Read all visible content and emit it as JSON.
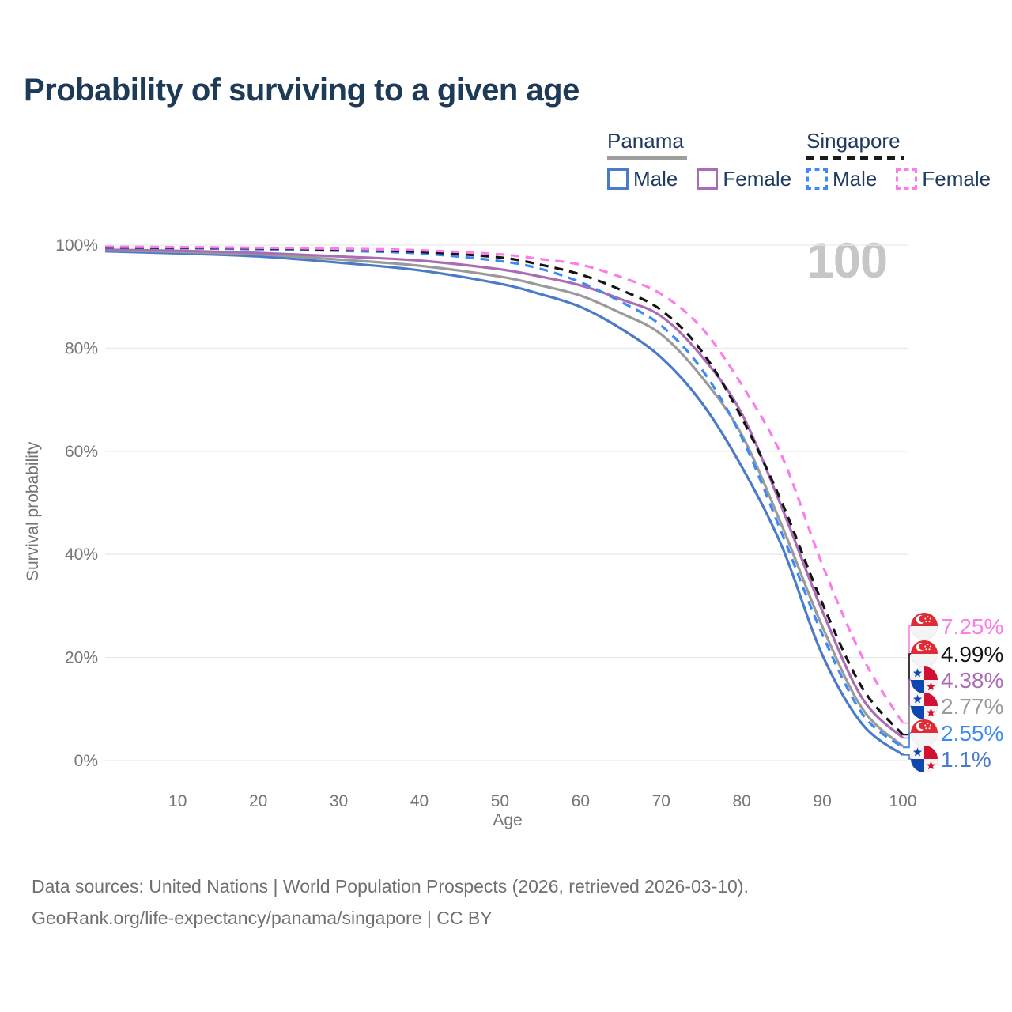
{
  "title": "Probability of surviving to a given age",
  "legend": {
    "groups": [
      {
        "label": "Panama",
        "underline_color": "#9e9e9e",
        "underline_dashed": false,
        "items": [
          {
            "label": "Male",
            "color": "#4b7bc8",
            "dashed": false
          },
          {
            "label": "Female",
            "color": "#aa6cb4",
            "dashed": false
          }
        ]
      },
      {
        "label": "Singapore",
        "underline_color": "#1a1a1a",
        "underline_dashed": true,
        "items": [
          {
            "label": "Male",
            "color": "#3d8af5",
            "dashed": true
          },
          {
            "label": "Female",
            "color": "#fb7de9",
            "dashed": true
          }
        ]
      }
    ]
  },
  "chart_data": {
    "type": "line",
    "title": "Probability of surviving to a given age",
    "xlabel": "Age",
    "ylabel": "Survival probability",
    "xlim": [
      1,
      100
    ],
    "ylim": [
      0,
      100
    ],
    "grid": true,
    "age_marker": "100",
    "x_ticks": [
      "10",
      "20",
      "30",
      "40",
      "50",
      "60",
      "70",
      "80",
      "90",
      "100"
    ],
    "x_tick_values": [
      10,
      20,
      30,
      40,
      50,
      60,
      70,
      80,
      90,
      100
    ],
    "y_ticks": [
      {
        "value": 0,
        "label": "0%"
      },
      {
        "value": 20,
        "label": "20%"
      },
      {
        "value": 40,
        "label": "40%"
      },
      {
        "value": 60,
        "label": "60%"
      },
      {
        "value": 80,
        "label": "80%"
      },
      {
        "value": 100,
        "label": "100%"
      }
    ],
    "ages": [
      1,
      10,
      20,
      30,
      40,
      50,
      55,
      60,
      65,
      70,
      75,
      80,
      85,
      90,
      95,
      100
    ],
    "series": [
      {
        "id": "panama-male",
        "name": "Panama Male",
        "country": "panama",
        "color": "#4b7bc8",
        "dashed": false,
        "values": [
          98.8,
          98.4,
          97.8,
          96.6,
          95.1,
          92.5,
          90.5,
          88.0,
          83.8,
          78.2,
          69.5,
          57.0,
          41.5,
          20.5,
          7.0,
          1.1
        ],
        "end_label": "1.1%"
      },
      {
        "id": "panama-both",
        "name": "Panama",
        "country": "panama",
        "color": "#9a9a9a",
        "dashed": false,
        "values": [
          99.0,
          98.7,
          98.2,
          97.2,
          96.0,
          93.9,
          92.2,
          90.2,
          86.8,
          82.7,
          74.5,
          63.2,
          45.5,
          26.0,
          10.0,
          2.77
        ],
        "end_label": "2.77%"
      },
      {
        "id": "panama-female",
        "name": "Panama Female",
        "country": "panama",
        "color": "#aa6cb4",
        "dashed": false,
        "values": [
          99.1,
          98.9,
          98.5,
          97.8,
          97.0,
          95.3,
          93.9,
          92.2,
          89.5,
          86.2,
          78.5,
          67.3,
          49.0,
          29.0,
          12.0,
          4.38
        ],
        "end_label": "4.38%"
      },
      {
        "id": "singapore-male",
        "name": "Singapore Male",
        "country": "singapore",
        "color": "#3d8af5",
        "dashed": true,
        "values": [
          99.5,
          99.4,
          99.2,
          98.9,
          98.4,
          96.9,
          95.4,
          92.8,
          89.0,
          84.4,
          76.0,
          62.7,
          44.0,
          24.5,
          9.0,
          2.55
        ],
        "end_label": "2.55%"
      },
      {
        "id": "singapore-both",
        "name": "Singapore",
        "country": "singapore",
        "color": "#141414",
        "dashed": true,
        "values": [
          99.6,
          99.5,
          99.4,
          99.1,
          98.7,
          97.6,
          96.2,
          94.3,
          91.3,
          87.4,
          79.5,
          66.5,
          50.0,
          30.5,
          14.0,
          4.99
        ],
        "end_label": "4.99%"
      },
      {
        "id": "singapore-female",
        "name": "Singapore Female",
        "country": "singapore",
        "color": "#fb7de9",
        "dashed": true,
        "values": [
          99.7,
          99.6,
          99.5,
          99.3,
          99.0,
          98.2,
          97.3,
          96.2,
          93.8,
          90.5,
          84.0,
          72.9,
          59.0,
          38.0,
          20.0,
          7.25
        ],
        "end_label": "7.25%"
      }
    ],
    "flags": {
      "panama": {
        "red": "#d21034",
        "blue": "#0f47af",
        "white": "#f4f4f5"
      },
      "singapore": {
        "red": "#e12a33",
        "white": "#f4f4f5"
      }
    }
  },
  "footer": {
    "line1": "Data sources: United Nations | World Population Prospects (2026, retrieved 2026-03-10).",
    "line2": "GeoRank.org/life-expectancy/panama/singapore | CC BY"
  }
}
